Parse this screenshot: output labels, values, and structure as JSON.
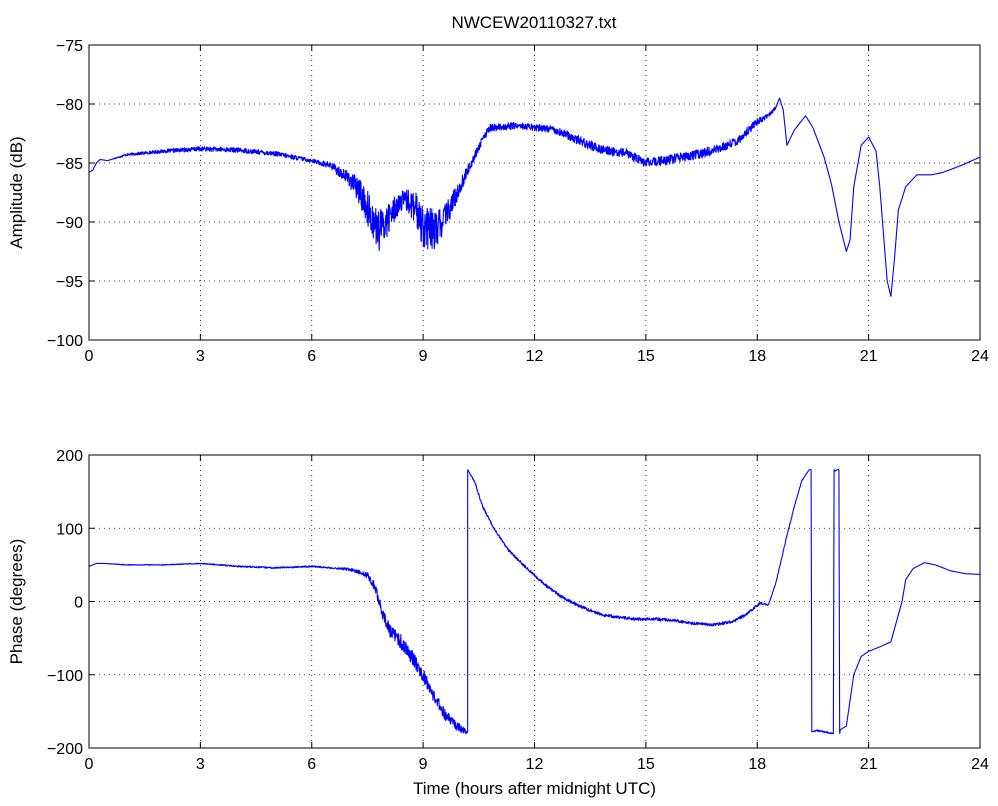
{
  "figure_title": "NWCEW20110327.txt",
  "colors": {
    "series": "#0000ff",
    "axes": "#000000",
    "background": "#ffffff"
  },
  "chart_data": [
    {
      "type": "line",
      "title": "NWCEW20110327.txt",
      "xlabel": "",
      "ylabel": "Amplitude (dB)",
      "xlim": [
        0,
        24
      ],
      "ylim": [
        -100,
        -75
      ],
      "x_ticks": [
        0,
        3,
        6,
        9,
        12,
        15,
        18,
        21,
        24
      ],
      "y_ticks": [
        -100,
        -95,
        -90,
        -85,
        -80,
        -75
      ],
      "x_tick_labels": [
        "0",
        "3",
        "6",
        "9",
        "12",
        "15",
        "18",
        "21",
        "24"
      ],
      "y_tick_labels": [
        "−100",
        "−95",
        "−90",
        "−85",
        "−80",
        "−75"
      ],
      "grid": true,
      "series": [
        {
          "x": [
            0,
            0.1,
            0.2,
            0.3,
            0.5,
            1.0,
            2.0,
            3.0,
            4.0,
            5.0,
            5.5,
            6.0,
            6.5,
            7.0,
            7.3,
            7.6,
            7.8,
            8.0,
            8.3,
            8.6,
            8.9,
            9.1,
            9.4,
            9.7,
            10.0,
            10.3,
            10.6,
            10.8,
            11.0,
            11.5,
            12.0,
            12.5,
            13.0,
            13.5,
            14.0,
            14.5,
            15.0,
            15.5,
            16.0,
            16.5,
            17.0,
            17.5,
            18.0,
            18.3,
            18.5,
            18.6,
            18.7,
            18.8,
            19.0,
            19.3,
            19.5,
            19.8,
            20.0,
            20.2,
            20.4,
            20.5,
            20.6,
            20.8,
            21.0,
            21.2,
            21.3,
            21.4,
            21.5,
            21.6,
            21.7,
            21.8,
            22.0,
            22.3,
            22.7,
            23.0,
            23.5,
            24.0
          ],
          "y": [
            -85.8,
            -85.6,
            -85.0,
            -84.7,
            -84.8,
            -84.3,
            -84.0,
            -83.8,
            -83.9,
            -84.2,
            -84.5,
            -84.8,
            -85.2,
            -86.3,
            -87.5,
            -89.5,
            -90.8,
            -90.0,
            -88.5,
            -88.2,
            -89.5,
            -90.8,
            -90.5,
            -89.0,
            -87.0,
            -85.0,
            -83.0,
            -82.0,
            -82.0,
            -81.8,
            -82.0,
            -82.1,
            -82.8,
            -83.5,
            -84.0,
            -84.2,
            -85.0,
            -84.8,
            -84.5,
            -84.2,
            -83.8,
            -83.0,
            -81.5,
            -81.0,
            -80.3,
            -79.5,
            -80.5,
            -83.5,
            -82.2,
            -81.0,
            -82.0,
            -84.5,
            -86.8,
            -90.0,
            -92.5,
            -91.5,
            -87.0,
            -83.5,
            -82.8,
            -84.0,
            -87.0,
            -91.0,
            -95.0,
            -96.3,
            -93.0,
            -89.0,
            -87.0,
            -86.0,
            -86.0,
            -85.8,
            -85.2,
            -84.5
          ],
          "noise": [
            0,
            0,
            0,
            0,
            0,
            0.1,
            0.15,
            0.2,
            0.2,
            0.2,
            0.2,
            0.15,
            0.3,
            0.6,
            1.2,
            1.6,
            1.8,
            1.4,
            1.0,
            1.0,
            1.8,
            2.0,
            1.6,
            1.0,
            0.7,
            0.4,
            0.3,
            0.3,
            0.3,
            0.3,
            0.3,
            0.3,
            0.4,
            0.4,
            0.4,
            0.4,
            0.4,
            0.4,
            0.4,
            0.4,
            0.4,
            0.4,
            0.3,
            0.2,
            0.1,
            0,
            0,
            0,
            0,
            0,
            0,
            0,
            0,
            0,
            0,
            0,
            0,
            0,
            0,
            0,
            0,
            0,
            0,
            0,
            0,
            0,
            0,
            0,
            0,
            0,
            0,
            0
          ]
        }
      ]
    },
    {
      "type": "line",
      "title": "",
      "xlabel": "Time (hours after midnight UTC)",
      "ylabel": "Phase (degrees)",
      "xlim": [
        0,
        24
      ],
      "ylim": [
        -200,
        200
      ],
      "x_ticks": [
        0,
        3,
        6,
        9,
        12,
        15,
        18,
        21,
        24
      ],
      "y_ticks": [
        -200,
        -100,
        0,
        100,
        200
      ],
      "x_tick_labels": [
        "0",
        "3",
        "6",
        "9",
        "12",
        "15",
        "18",
        "21",
        "24"
      ],
      "y_tick_labels": [
        "−200",
        "−100",
        "0",
        "100",
        "200"
      ],
      "grid": true,
      "series": [
        {
          "x": [
            0,
            0.2,
            0.4,
            1.0,
            2.0,
            3.0,
            4.0,
            5.0,
            6.0,
            6.5,
            7.0,
            7.5,
            7.7,
            7.9,
            8.1,
            8.4,
            8.7,
            9.0,
            9.3,
            9.6,
            9.9,
            10.15,
            10.2,
            10.2,
            10.4,
            10.6,
            10.9,
            11.3,
            11.8,
            12.3,
            12.8,
            13.3,
            13.8,
            14.3,
            14.8,
            15.3,
            15.8,
            16.3,
            16.8,
            17.3,
            17.7,
            18.0,
            18.1,
            18.3,
            18.5,
            18.8,
            19.0,
            19.2,
            19.4,
            19.45,
            19.47,
            19.6,
            19.8,
            20.0,
            20.05,
            20.07,
            20.1,
            20.15,
            20.2,
            20.22,
            20.24,
            20.4,
            20.6,
            20.8,
            21.0,
            21.3,
            21.6,
            21.9,
            22.0,
            22.2,
            22.5,
            22.8,
            23.2,
            23.6,
            24.0
          ],
          "y": [
            48,
            52,
            52,
            50,
            50,
            52,
            48,
            46,
            48,
            46,
            44,
            36,
            20,
            -15,
            -40,
            -55,
            -75,
            -100,
            -130,
            -155,
            -170,
            -178,
            -178,
            180,
            162,
            130,
            100,
            70,
            45,
            22,
            4,
            -8,
            -18,
            -22,
            -24,
            -24,
            -26,
            -30,
            -32,
            -28,
            -18,
            -5,
            -2,
            -5,
            25,
            90,
            130,
            165,
            180,
            180,
            -178,
            -176,
            -178,
            -180,
            -180,
            180,
            178,
            180,
            180,
            -180,
            -175,
            -170,
            -100,
            -75,
            -68,
            -62,
            -55,
            0,
            30,
            45,
            53,
            50,
            42,
            38,
            37
          ],
          "noise": [
            0,
            0,
            0,
            0.5,
            0.5,
            0.5,
            1,
            1,
            1,
            1,
            2,
            4,
            6,
            8,
            10,
            10,
            10,
            10,
            8,
            8,
            6,
            4,
            0,
            0,
            1.5,
            1.5,
            1.5,
            1.5,
            2,
            2,
            2,
            2,
            2,
            2,
            2,
            2,
            2,
            2,
            2,
            2,
            2,
            2,
            2,
            1,
            1,
            1,
            1,
            1,
            0,
            0,
            0,
            1,
            1,
            1,
            0,
            0,
            0,
            0,
            0,
            0,
            0,
            0,
            0,
            0,
            0,
            0,
            0,
            0,
            0,
            0,
            0,
            0,
            0,
            0,
            0
          ]
        }
      ]
    }
  ]
}
